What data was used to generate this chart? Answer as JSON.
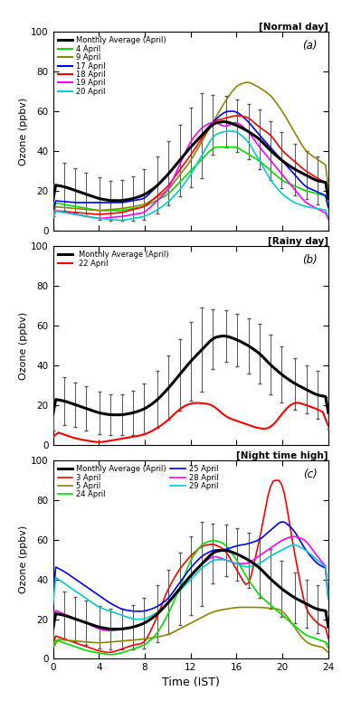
{
  "title_a": "[Normal day]",
  "title_b": "[Rainy day]",
  "title_c": "[Night time high]",
  "xlabel": "Time (IST)",
  "ylabel": "Ozone (ppbv)",
  "panel_labels": [
    "(a)",
    "(b)",
    "(c)"
  ],
  "x_ticks": [
    0,
    4,
    8,
    12,
    16,
    20,
    24
  ],
  "ylim": [
    0,
    100
  ],
  "xlim": [
    0,
    24
  ],
  "bg_color": "#ffffff",
  "monthly_avg_color": "#000000",
  "monthly_avg_lw": 2.2,
  "panel_a": {
    "legend_entries": [
      "Monthly Average (April)",
      "4 April",
      "9 April",
      "17 April",
      "18 April",
      "19 April",
      "20 April"
    ],
    "colors": [
      "#000000",
      "#00dd00",
      "#888800",
      "#0000ff",
      "#ff0000",
      "#ff00ff",
      "#00cccc"
    ],
    "lws": [
      2.2,
      1.2,
      1.2,
      1.2,
      1.2,
      1.2,
      1.2
    ]
  },
  "panel_b": {
    "legend_entries": [
      "Monthly Average (April)",
      "22 April"
    ],
    "colors": [
      "#000000",
      "#ff0000"
    ],
    "lws": [
      2.2,
      1.5
    ]
  },
  "panel_c": {
    "legend_entries": [
      "Monthly Average (April)",
      "3 April",
      "5 April",
      "24 April",
      "25 April",
      "28 April",
      "29 April"
    ],
    "colors": [
      "#000000",
      "#ff0000",
      "#888800",
      "#00dd00",
      "#0000ff",
      "#ff00ff",
      "#00cccc"
    ],
    "lws": [
      2.2,
      1.2,
      1.2,
      1.2,
      1.2,
      1.2,
      1.2
    ]
  }
}
